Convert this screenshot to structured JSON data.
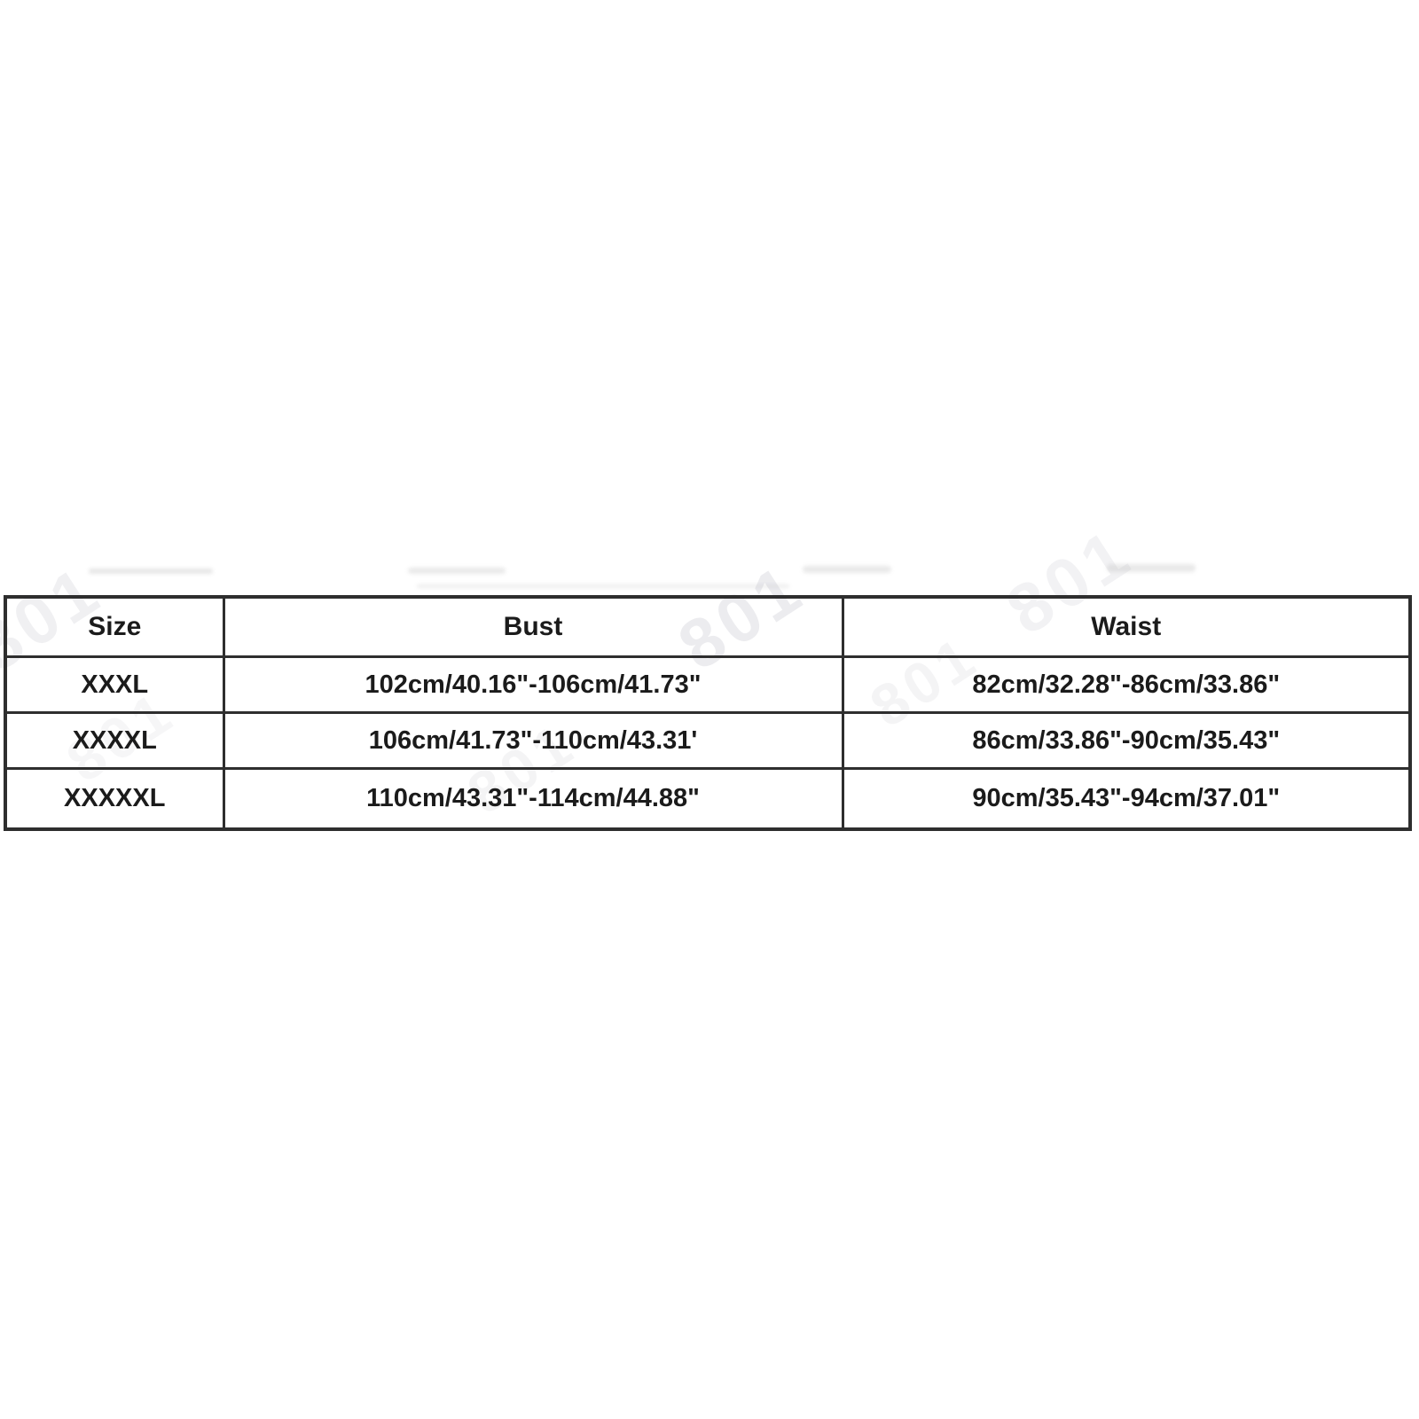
{
  "chart_data": {
    "type": "table",
    "title": "",
    "columns": [
      "Size",
      "Bust",
      "Waist"
    ],
    "rows": [
      [
        "XXXL",
        "102cm/40.16\"-106cm/41.73\"",
        "82cm/32.28\"-86cm/33.86\""
      ],
      [
        "XXXXL",
        "106cm/41.73\"-110cm/43.31'",
        "86cm/33.86\"-90cm/35.43\""
      ],
      [
        "XXXXXL",
        "110cm/43.31\"-114cm/44.88\"",
        "90cm/35.43\"-94cm/37.01\""
      ]
    ]
  },
  "watermark": {
    "text": "801"
  },
  "colors": {
    "background": "#ffffff",
    "table_border": "#2e2e2e",
    "table_text": "#1b1b1b",
    "watermark": "#3a3a5a"
  }
}
